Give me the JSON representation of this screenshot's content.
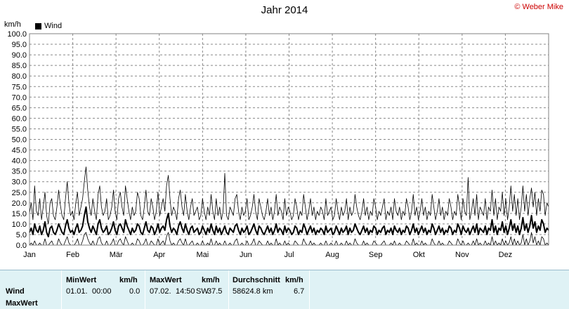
{
  "header": {
    "title": "Jahr 2014",
    "copyright": "© Weber Mike",
    "unit": "km/h",
    "legend": "Wind"
  },
  "chart_data": {
    "type": "line",
    "title": "Jahr 2014",
    "ylabel": "km/h",
    "ylim": [
      0,
      100
    ],
    "yticks": [
      "0.0",
      "5.0",
      "10.0",
      "15.0",
      "20.0",
      "25.0",
      "30.0",
      "35.0",
      "40.0",
      "45.0",
      "50.0",
      "55.0",
      "60.0",
      "65.0",
      "70.0",
      "75.0",
      "80.0",
      "85.0",
      "90.0",
      "95.0",
      "100.0"
    ],
    "months": [
      "Jan",
      "Feb",
      "Mär",
      "Apr",
      "Mai",
      "Jun",
      "Jul",
      "Aug",
      "Sep",
      "Okt",
      "Nov",
      "Dez"
    ],
    "grid": true,
    "legend_position": "top-left",
    "series": [
      {
        "name": "Wind",
        "kind": "avg",
        "values": [
          6,
          8,
          5,
          10,
          7,
          6,
          9,
          5,
          7,
          11,
          6,
          4,
          8,
          9,
          6,
          5,
          7,
          10,
          8,
          6,
          5,
          9,
          12,
          8,
          6,
          7,
          5,
          8,
          10,
          6,
          7,
          9,
          14,
          18,
          11,
          8,
          6,
          9,
          7,
          5,
          10,
          12,
          8,
          6,
          7,
          9,
          5,
          6,
          8,
          11,
          7,
          5,
          9,
          10,
          8,
          6,
          12,
          9,
          7,
          5,
          8,
          6,
          7,
          10,
          9,
          6,
          5,
          8,
          11,
          7,
          6,
          9,
          8,
          5,
          7,
          10,
          6,
          8,
          9,
          7,
          12,
          15,
          9,
          6,
          8,
          7,
          5,
          9,
          11,
          8,
          6,
          10,
          7,
          5,
          8,
          9,
          6,
          7,
          8,
          5,
          6,
          9,
          7,
          5,
          8,
          6,
          10,
          7,
          5,
          9,
          6,
          8,
          5,
          7,
          9,
          6,
          5,
          8,
          7,
          6,
          9,
          10,
          7,
          5,
          8,
          6,
          7,
          9,
          5,
          6,
          8,
          10,
          7,
          5,
          9,
          8,
          6,
          5,
          7,
          9,
          6,
          8,
          5,
          7,
          10,
          6,
          8,
          7,
          5,
          9,
          6,
          8,
          7,
          5,
          6,
          9,
          8,
          5,
          7,
          6,
          10,
          8,
          5,
          7,
          9,
          6,
          8,
          5,
          7,
          6,
          8,
          7,
          5,
          9,
          6,
          7,
          8,
          5,
          6,
          9,
          7,
          5,
          8,
          6,
          7,
          9,
          5,
          8,
          6,
          7,
          10,
          8,
          6,
          5,
          7,
          9,
          6,
          8,
          5,
          7,
          6,
          9,
          8,
          5,
          7,
          6,
          8,
          9,
          5,
          7,
          6,
          8,
          5,
          9,
          7,
          6,
          8,
          5,
          7,
          6,
          9,
          8,
          5,
          7,
          10,
          6,
          8,
          5,
          7,
          9,
          6,
          8,
          5,
          7,
          6,
          10,
          8,
          5,
          7,
          9,
          6,
          8,
          5,
          7,
          6,
          9,
          8,
          5,
          7,
          6,
          10,
          8,
          5,
          9,
          7,
          6,
          8,
          5,
          7,
          9,
          6,
          10,
          5,
          8,
          7,
          6,
          9,
          5,
          8,
          7,
          12,
          6,
          9,
          5,
          8,
          7,
          11,
          6,
          9,
          5,
          8,
          12,
          7,
          10,
          6,
          9,
          5,
          8,
          13,
          7,
          10,
          6,
          9,
          14,
          8,
          11,
          6,
          9,
          7,
          12,
          10,
          6,
          8,
          7
        ]
      },
      {
        "name": "",
        "kind": "max",
        "values": [
          15,
          20,
          12,
          28,
          16,
          14,
          22,
          12,
          18,
          25,
          14,
          10,
          20,
          22,
          14,
          12,
          18,
          26,
          19,
          14,
          12,
          22,
          30,
          20,
          14,
          16,
          12,
          20,
          25,
          14,
          18,
          22,
          30,
          37,
          26,
          18,
          14,
          22,
          16,
          12,
          24,
          28,
          18,
          14,
          16,
          22,
          12,
          14,
          18,
          26,
          16,
          12,
          22,
          25,
          18,
          14,
          28,
          22,
          16,
          12,
          18,
          14,
          16,
          25,
          22,
          14,
          12,
          18,
          26,
          16,
          14,
          22,
          18,
          12,
          16,
          25,
          14,
          18,
          22,
          16,
          28,
          33,
          22,
          14,
          18,
          16,
          12,
          22,
          26,
          18,
          14,
          24,
          16,
          12,
          18,
          22,
          14,
          16,
          18,
          12,
          14,
          22,
          16,
          12,
          18,
          14,
          24,
          16,
          12,
          22,
          14,
          18,
          12,
          16,
          34,
          14,
          12,
          18,
          16,
          14,
          22,
          24,
          16,
          12,
          18,
          14,
          16,
          22,
          12,
          14,
          18,
          24,
          16,
          12,
          22,
          18,
          14,
          12,
          16,
          22,
          14,
          18,
          12,
          16,
          24,
          14,
          18,
          16,
          12,
          22,
          14,
          18,
          16,
          12,
          14,
          22,
          18,
          12,
          16,
          14,
          24,
          18,
          12,
          16,
          22,
          14,
          18,
          12,
          16,
          14,
          18,
          16,
          12,
          22,
          14,
          16,
          18,
          12,
          14,
          22,
          16,
          12,
          18,
          14,
          16,
          22,
          12,
          18,
          14,
          16,
          24,
          18,
          14,
          12,
          16,
          22,
          14,
          18,
          12,
          16,
          14,
          22,
          18,
          12,
          16,
          14,
          18,
          22,
          12,
          16,
          14,
          18,
          12,
          22,
          16,
          14,
          18,
          12,
          16,
          14,
          22,
          18,
          12,
          16,
          24,
          14,
          18,
          12,
          16,
          22,
          14,
          18,
          12,
          16,
          14,
          24,
          18,
          12,
          16,
          22,
          14,
          18,
          12,
          16,
          14,
          22,
          18,
          12,
          16,
          14,
          24,
          18,
          12,
          22,
          16,
          14,
          32,
          12,
          16,
          22,
          14,
          24,
          12,
          18,
          16,
          14,
          22,
          12,
          18,
          16,
          26,
          14,
          22,
          12,
          18,
          16,
          25,
          14,
          22,
          12,
          18,
          28,
          16,
          24,
          14,
          22,
          12,
          18,
          28,
          16,
          24,
          14,
          22,
          27,
          18,
          25,
          14,
          22,
          16,
          26,
          24,
          14,
          20,
          18
        ]
      },
      {
        "name": "",
        "kind": "min",
        "values": [
          0,
          1,
          0,
          2,
          0,
          0,
          1,
          0,
          0,
          3,
          0,
          0,
          1,
          2,
          0,
          0,
          0,
          3,
          1,
          0,
          0,
          2,
          4,
          1,
          0,
          0,
          0,
          1,
          3,
          0,
          0,
          2,
          5,
          6,
          3,
          1,
          0,
          2,
          0,
          0,
          3,
          4,
          1,
          0,
          0,
          2,
          0,
          0,
          1,
          3,
          0,
          0,
          2,
          3,
          1,
          0,
          4,
          2,
          0,
          0,
          1,
          0,
          0,
          3,
          2,
          0,
          0,
          1,
          3,
          0,
          0,
          2,
          1,
          0,
          0,
          3,
          0,
          1,
          2,
          0,
          4,
          6,
          2,
          0,
          1,
          0,
          0,
          2,
          3,
          1,
          0,
          3,
          0,
          0,
          1,
          2,
          0,
          0,
          1,
          0,
          0,
          2,
          0,
          0,
          1,
          0,
          3,
          0,
          0,
          2,
          0,
          1,
          0,
          0,
          2,
          0,
          0,
          1,
          0,
          0,
          2,
          3,
          0,
          0,
          1,
          0,
          0,
          2,
          0,
          0,
          1,
          3,
          0,
          0,
          2,
          1,
          0,
          0,
          0,
          2,
          0,
          1,
          0,
          0,
          3,
          0,
          1,
          0,
          0,
          2,
          0,
          1,
          0,
          0,
          0,
          2,
          1,
          0,
          0,
          0,
          3,
          1,
          0,
          0,
          2,
          0,
          1,
          0,
          0,
          0,
          1,
          0,
          0,
          2,
          0,
          0,
          1,
          0,
          0,
          2,
          0,
          0,
          1,
          0,
          0,
          2,
          0,
          1,
          0,
          0,
          3,
          1,
          0,
          0,
          0,
          2,
          0,
          1,
          0,
          0,
          0,
          2,
          1,
          0,
          0,
          0,
          1,
          2,
          0,
          0,
          0,
          1,
          0,
          2,
          0,
          0,
          1,
          0,
          0,
          0,
          2,
          1,
          0,
          0,
          3,
          0,
          1,
          0,
          0,
          2,
          0,
          1,
          0,
          0,
          0,
          3,
          1,
          0,
          0,
          2,
          0,
          1,
          0,
          0,
          0,
          2,
          1,
          0,
          0,
          0,
          3,
          1,
          0,
          2,
          0,
          0,
          1,
          0,
          0,
          2,
          0,
          3,
          0,
          1,
          0,
          0,
          2,
          0,
          1,
          0,
          4,
          0,
          2,
          0,
          1,
          0,
          3,
          0,
          2,
          0,
          1,
          4,
          0,
          3,
          0,
          2,
          0,
          1,
          5,
          0,
          3,
          0,
          2,
          6,
          1,
          4,
          0,
          2,
          0,
          4,
          3,
          0,
          1,
          0
        ]
      }
    ]
  },
  "stats": {
    "row_labels": [
      "Wind",
      "MaxWert"
    ],
    "min": {
      "header": "MinWert",
      "unit": "km/h",
      "date": "01.01.",
      "time": "00:00",
      "value": "0.0"
    },
    "max": {
      "header": "MaxWert",
      "unit": "km/h",
      "date": "07.02.",
      "time": "14:50",
      "dir": "SW",
      "value": "37.5"
    },
    "avg": {
      "header": "Durchschnitt",
      "unit": "km/h",
      "distance": "58624.8 km",
      "value": "6.7"
    }
  }
}
